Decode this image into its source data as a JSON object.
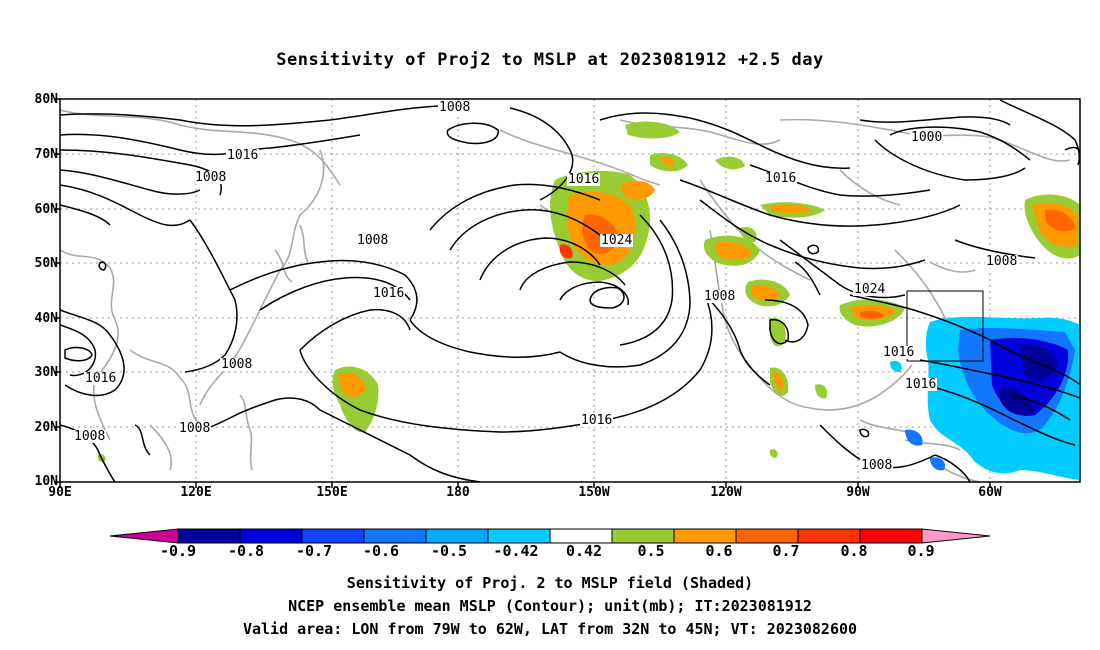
{
  "title": "Sensitivity of Proj2 to MSLP at 2023081912 +2.5 day",
  "lat_labels": [
    "80N",
    "70N",
    "60N",
    "50N",
    "40N",
    "30N",
    "20N",
    "10N"
  ],
  "lon_labels": [
    "90E",
    "120E",
    "150E",
    "180",
    "150W",
    "120W",
    "90W",
    "60W"
  ],
  "contour_labels": [
    "1008",
    "1016",
    "1008",
    "1008",
    "1016",
    "1016",
    "1024",
    "1016",
    "1000",
    "1008",
    "1008",
    "1024",
    "1016",
    "1016",
    "1008",
    "1016",
    "1008",
    "1008",
    "1016",
    "1008"
  ],
  "colorbar": {
    "labels": [
      "-0.9",
      "-0.8",
      "-0.7",
      "-0.6",
      "-0.5",
      "-0.42",
      "0.42",
      "0.5",
      "0.6",
      "0.7",
      "0.8",
      "0.9"
    ],
    "colors": [
      "#cc0099",
      "#000099",
      "#0000dd",
      "#1144ff",
      "#1177ff",
      "#00aaff",
      "#00ccff",
      "#ffffff",
      "#99cc33",
      "#ff9900",
      "#ff6600",
      "#ff3300",
      "#ff0000",
      "#ff99cc"
    ]
  },
  "captions": {
    "line1": "Sensitivity of Proj. 2 to MSLP field (Shaded)",
    "line2": "NCEP ensemble mean MSLP (Contour); unit(mb); IT:2023081912",
    "line3": "Valid area: LON from 79W to 62W, LAT from 32N to 45N; VT: 2023082600"
  }
}
